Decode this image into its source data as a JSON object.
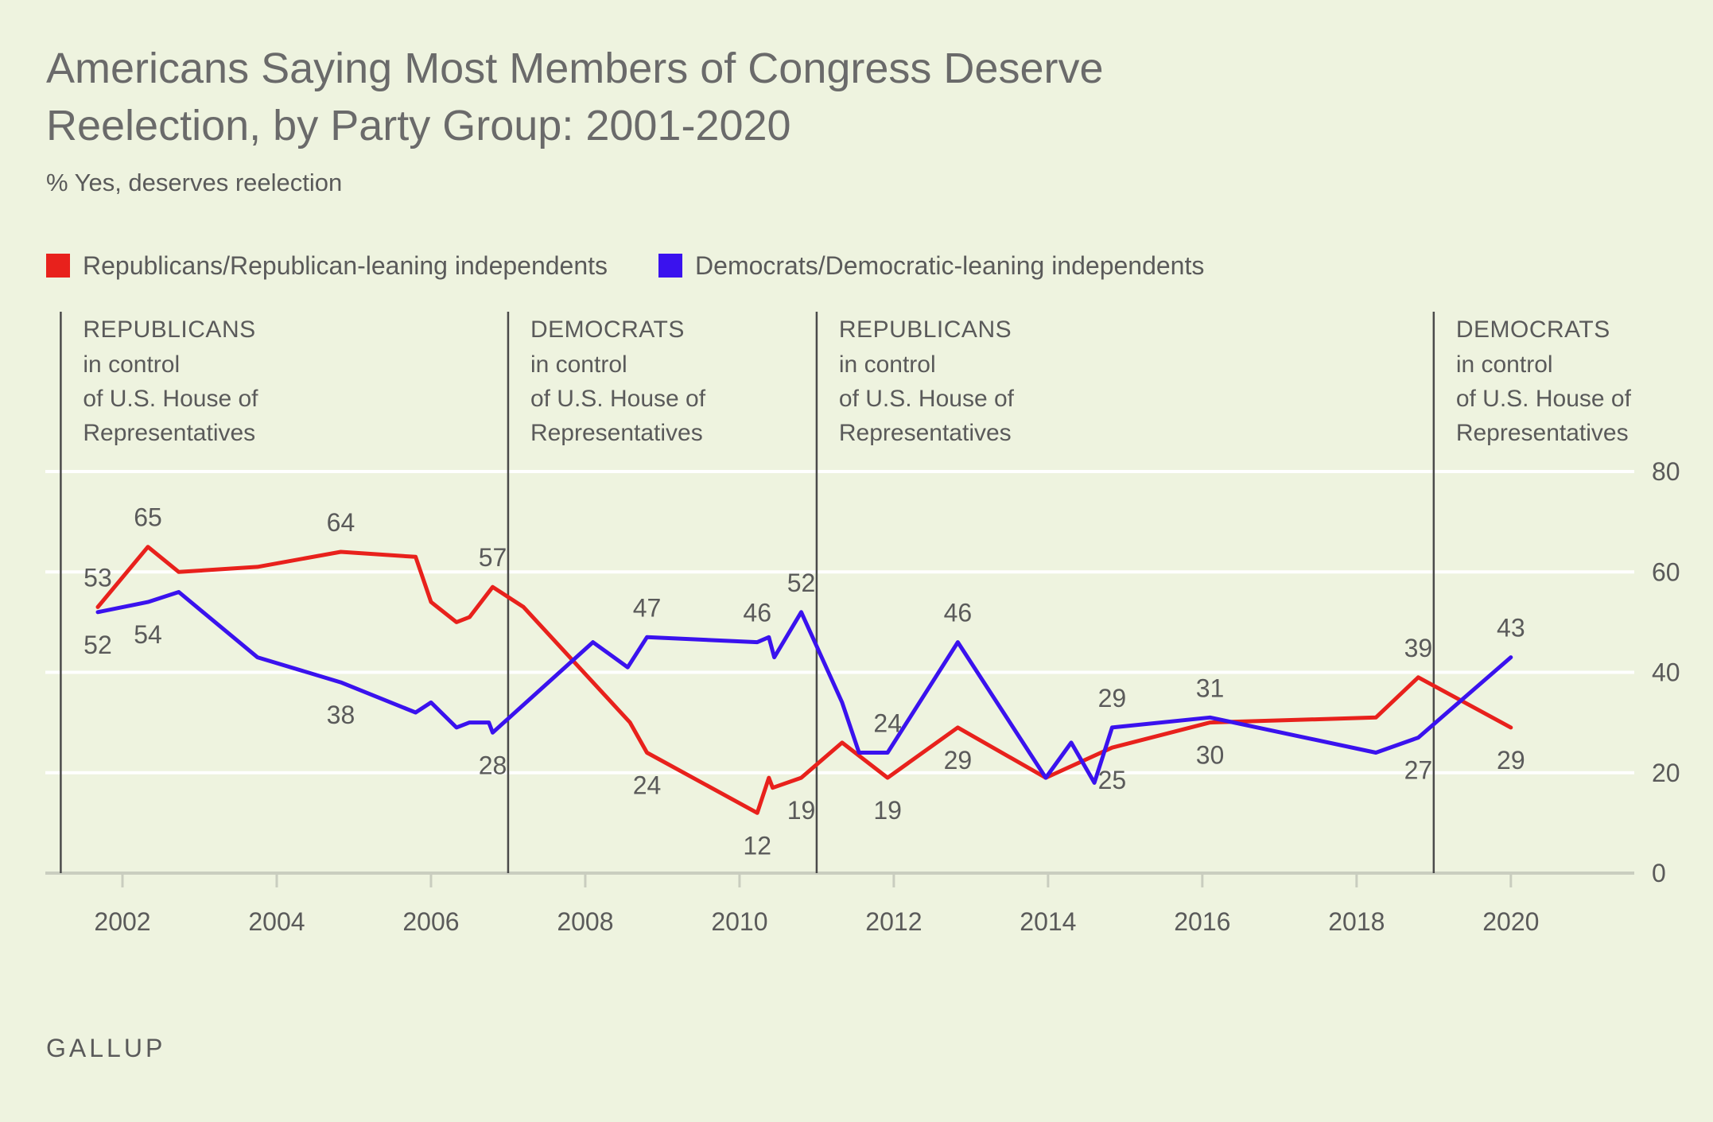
{
  "title": "Americans Saying Most Members of Congress Deserve Reelection, by Party Group: 2001-2020",
  "subtitle": "% Yes, deserves reelection",
  "source": "GALLUP",
  "colors": {
    "republican": "#e8211c",
    "democrat": "#3a12ee",
    "grid": "#ffffff",
    "divider": "#4a4a4a",
    "text": "#5a5a5a",
    "background": "#eef3df"
  },
  "legend": [
    {
      "label": "Republicans/Republican-leaning independents",
      "color": "#e8211c"
    },
    {
      "label": "Democrats/Democratic-leaning independents",
      "color": "#3a12ee"
    }
  ],
  "chart_data": {
    "type": "line",
    "title": "Americans Saying Most Members of Congress Deserve Reelection, by Party Group: 2001-2020",
    "subtitle": "% Yes, deserves reelection",
    "xlabel": "",
    "ylabel": "",
    "xlim": [
      2001.0,
      2021.6
    ],
    "ylim": [
      0,
      80
    ],
    "x_ticks": [
      2002,
      2004,
      2006,
      2008,
      2010,
      2012,
      2014,
      2016,
      2018,
      2020
    ],
    "y_ticks": [
      0,
      20,
      40,
      60,
      80
    ],
    "y_axis_position": "right",
    "grid": true,
    "legend_position": "top-left",
    "series": [
      {
        "name": "Republicans/Republican-leaning independents",
        "color": "#e8211c",
        "points": [
          [
            2001.68,
            53
          ],
          [
            2002.33,
            65
          ],
          [
            2002.73,
            60
          ],
          [
            2003.75,
            61
          ],
          [
            2004.83,
            64
          ],
          [
            2005.8,
            63
          ],
          [
            2006.0,
            54
          ],
          [
            2006.33,
            50
          ],
          [
            2006.5,
            51
          ],
          [
            2006.8,
            57
          ],
          [
            2007.2,
            53
          ],
          [
            2008.58,
            30
          ],
          [
            2008.8,
            24
          ],
          [
            2010.23,
            12
          ],
          [
            2010.38,
            19
          ],
          [
            2010.43,
            17
          ],
          [
            2010.8,
            19
          ],
          [
            2011.33,
            26
          ],
          [
            2011.92,
            19
          ],
          [
            2012.83,
            29
          ],
          [
            2013.97,
            19
          ],
          [
            2014.83,
            25
          ],
          [
            2016.1,
            30
          ],
          [
            2018.25,
            31
          ],
          [
            2018.8,
            39
          ],
          [
            2020.0,
            29
          ]
        ]
      },
      {
        "name": "Democrats/Democratic-leaning independents",
        "color": "#3a12ee",
        "points": [
          [
            2001.68,
            52
          ],
          [
            2002.33,
            54
          ],
          [
            2002.73,
            56
          ],
          [
            2003.75,
            43
          ],
          [
            2004.83,
            38
          ],
          [
            2005.8,
            32
          ],
          [
            2006.0,
            34
          ],
          [
            2006.33,
            29
          ],
          [
            2006.5,
            30
          ],
          [
            2006.75,
            30
          ],
          [
            2006.8,
            28
          ],
          [
            2008.1,
            46
          ],
          [
            2008.55,
            41
          ],
          [
            2008.8,
            47
          ],
          [
            2010.23,
            46
          ],
          [
            2010.38,
            47
          ],
          [
            2010.45,
            43
          ],
          [
            2010.8,
            52
          ],
          [
            2011.33,
            34
          ],
          [
            2011.55,
            24
          ],
          [
            2011.92,
            24
          ],
          [
            2012.83,
            46
          ],
          [
            2013.97,
            19
          ],
          [
            2014.3,
            26
          ],
          [
            2014.6,
            18
          ],
          [
            2014.83,
            29
          ],
          [
            2016.1,
            31
          ],
          [
            2018.25,
            24
          ],
          [
            2018.8,
            27
          ],
          [
            2020.0,
            43
          ]
        ]
      }
    ],
    "data_labels": [
      {
        "text": "53",
        "x": 2001.68,
        "y": 53,
        "series": "republican",
        "pos": "above"
      },
      {
        "text": "65",
        "x": 2002.33,
        "y": 65,
        "series": "republican",
        "pos": "above"
      },
      {
        "text": "64",
        "x": 2004.83,
        "y": 64,
        "series": "republican",
        "pos": "above"
      },
      {
        "text": "57",
        "x": 2006.8,
        "y": 57,
        "series": "republican",
        "pos": "above"
      },
      {
        "text": "24",
        "x": 2008.8,
        "y": 24,
        "series": "republican",
        "pos": "below"
      },
      {
        "text": "12",
        "x": 2010.23,
        "y": 12,
        "series": "republican",
        "pos": "below"
      },
      {
        "text": "19",
        "x": 2010.8,
        "y": 19,
        "series": "republican",
        "pos": "below"
      },
      {
        "text": "19",
        "x": 2011.92,
        "y": 19,
        "series": "republican",
        "pos": "below"
      },
      {
        "text": "29",
        "x": 2012.83,
        "y": 29,
        "series": "republican",
        "pos": "below"
      },
      {
        "text": "25",
        "x": 2014.83,
        "y": 25,
        "series": "republican",
        "pos": "below"
      },
      {
        "text": "30",
        "x": 2016.1,
        "y": 30,
        "series": "republican",
        "pos": "below"
      },
      {
        "text": "39",
        "x": 2018.8,
        "y": 39,
        "series": "republican",
        "pos": "above"
      },
      {
        "text": "29",
        "x": 2020.0,
        "y": 29,
        "series": "republican",
        "pos": "below"
      },
      {
        "text": "52",
        "x": 2001.68,
        "y": 52,
        "series": "democrat",
        "pos": "below"
      },
      {
        "text": "54",
        "x": 2002.33,
        "y": 54,
        "series": "democrat",
        "pos": "below"
      },
      {
        "text": "38",
        "x": 2004.83,
        "y": 38,
        "series": "democrat",
        "pos": "below"
      },
      {
        "text": "28",
        "x": 2006.8,
        "y": 28,
        "series": "democrat",
        "pos": "below"
      },
      {
        "text": "47",
        "x": 2008.8,
        "y": 47,
        "series": "democrat",
        "pos": "above"
      },
      {
        "text": "46",
        "x": 2010.23,
        "y": 46,
        "series": "democrat",
        "pos": "above"
      },
      {
        "text": "52",
        "x": 2010.8,
        "y": 52,
        "series": "democrat",
        "pos": "above"
      },
      {
        "text": "24",
        "x": 2011.92,
        "y": 24,
        "series": "democrat",
        "pos": "above"
      },
      {
        "text": "46",
        "x": 2012.83,
        "y": 46,
        "series": "democrat",
        "pos": "above"
      },
      {
        "text": "29",
        "x": 2014.83,
        "y": 29,
        "series": "democrat",
        "pos": "above"
      },
      {
        "text": "31",
        "x": 2016.1,
        "y": 31,
        "series": "democrat",
        "pos": "above"
      },
      {
        "text": "27",
        "x": 2018.8,
        "y": 27,
        "series": "democrat",
        "pos": "below"
      },
      {
        "text": "43",
        "x": 2020.0,
        "y": 43,
        "series": "democrat",
        "pos": "above"
      }
    ],
    "annotations": [
      {
        "x": 2001.2,
        "heading": "REPUBLICANS",
        "lines": [
          "in control",
          "of U.S. House of",
          "Representatives"
        ]
      },
      {
        "x": 2007.0,
        "heading": "DEMOCRATS",
        "lines": [
          "in control",
          "of U.S. House of",
          "Representatives"
        ]
      },
      {
        "x": 2011.0,
        "heading": "REPUBLICANS",
        "lines": [
          "in control",
          "of U.S. House of",
          "Representatives"
        ]
      },
      {
        "x": 2019.0,
        "heading": "DEMOCRATS",
        "lines": [
          "in control",
          "of U.S. House of",
          "Representatives"
        ]
      }
    ]
  }
}
